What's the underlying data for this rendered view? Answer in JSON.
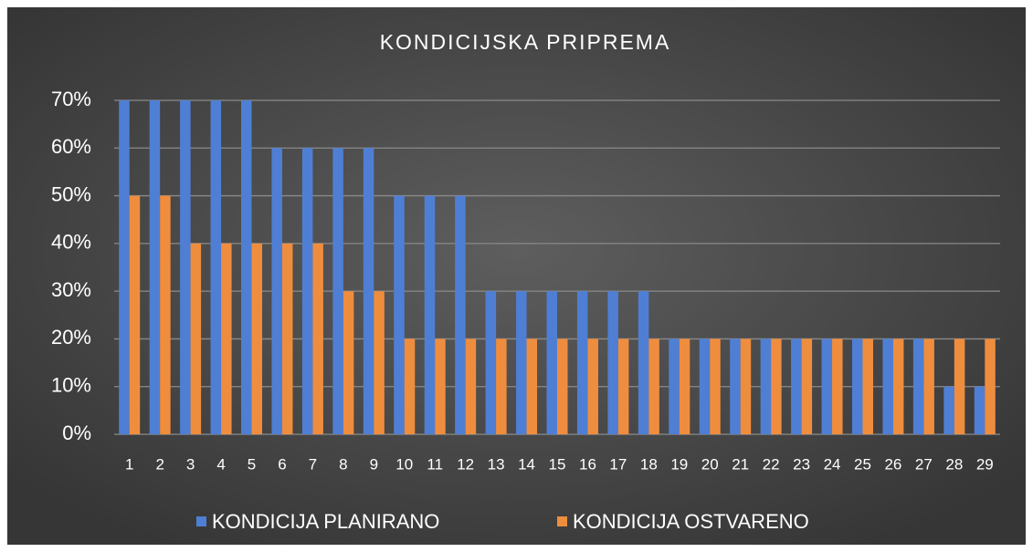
{
  "chart_data": {
    "type": "bar",
    "title": "KONDICIJSKA PRIPREMA",
    "categories": [
      "1",
      "2",
      "3",
      "4",
      "5",
      "6",
      "7",
      "8",
      "9",
      "10",
      "11",
      "12",
      "13",
      "14",
      "15",
      "16",
      "17",
      "18",
      "19",
      "20",
      "21",
      "22",
      "23",
      "24",
      "25",
      "26",
      "27",
      "28",
      "29"
    ],
    "series": [
      {
        "name": "KONDICIJA PLANIRANO",
        "color": "#4f7fd4",
        "values": [
          70,
          70,
          70,
          70,
          70,
          60,
          60,
          60,
          60,
          50,
          50,
          50,
          30,
          30,
          30,
          30,
          30,
          30,
          20,
          20,
          20,
          20,
          20,
          20,
          20,
          20,
          20,
          10,
          10
        ]
      },
      {
        "name": "KONDICIJA OSTVARENO",
        "color": "#ef8d3e",
        "values": [
          50,
          50,
          40,
          40,
          40,
          40,
          40,
          30,
          30,
          20,
          20,
          20,
          20,
          20,
          20,
          20,
          20,
          20,
          20,
          20,
          20,
          20,
          20,
          20,
          20,
          20,
          20,
          20,
          20
        ]
      }
    ],
    "ylim": [
      0,
      70
    ],
    "yticks": [
      {
        "value": 0,
        "label": "0%"
      },
      {
        "value": 10,
        "label": "10%"
      },
      {
        "value": 20,
        "label": "20%"
      },
      {
        "value": 30,
        "label": "30%"
      },
      {
        "value": 40,
        "label": "40%"
      },
      {
        "value": 50,
        "label": "50%"
      },
      {
        "value": 60,
        "label": "60%"
      },
      {
        "value": 70,
        "label": "70%"
      }
    ],
    "grid": true,
    "legend": "bottom"
  }
}
